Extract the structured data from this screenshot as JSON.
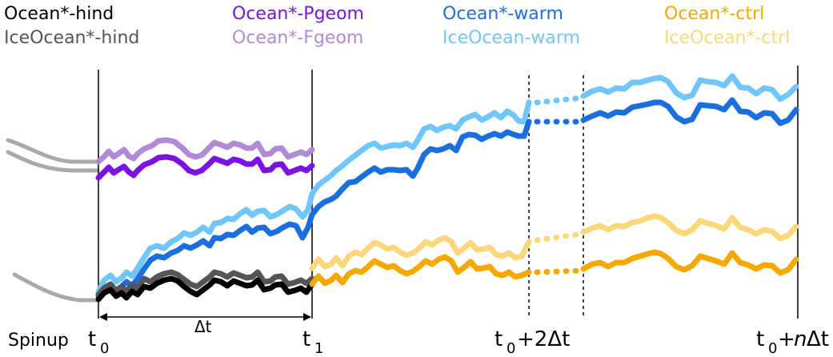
{
  "legend": [
    {
      "label": "Ocean*-hind",
      "color": "#000000"
    },
    {
      "label": "IceOcean*-hind",
      "color": "#555555"
    },
    {
      "label": "Ocean*-Pgeom",
      "color": "#7a12e6"
    },
    {
      "label": "Ocean*-Fgeom",
      "color": "#b08ad6"
    },
    {
      "label": "Ocean*-warm",
      "color": "#1a6fe0"
    },
    {
      "label": "IceOcean-warm",
      "color": "#6ec6fa"
    },
    {
      "label": "Ocean*-ctrl",
      "color": "#f5a800"
    },
    {
      "label": "IceOcean*-ctrl",
      "color": "#fbd77a"
    }
  ],
  "timeline": {
    "spinup": "Spinup",
    "t0": "t",
    "t0_sub": "0",
    "t1": "t",
    "t1_sub": "1",
    "t2_main": "t",
    "t2_sub": "0",
    "t2_suffix": "+2Δt",
    "tn_main": "t",
    "tn_sub": "0",
    "tn_plus": "+",
    "tn_n": "n",
    "tn_suffix": "Δt",
    "dt": "Δt"
  },
  "colors": {
    "spinup": "#a9a9a9",
    "axis": "#000000"
  }
}
